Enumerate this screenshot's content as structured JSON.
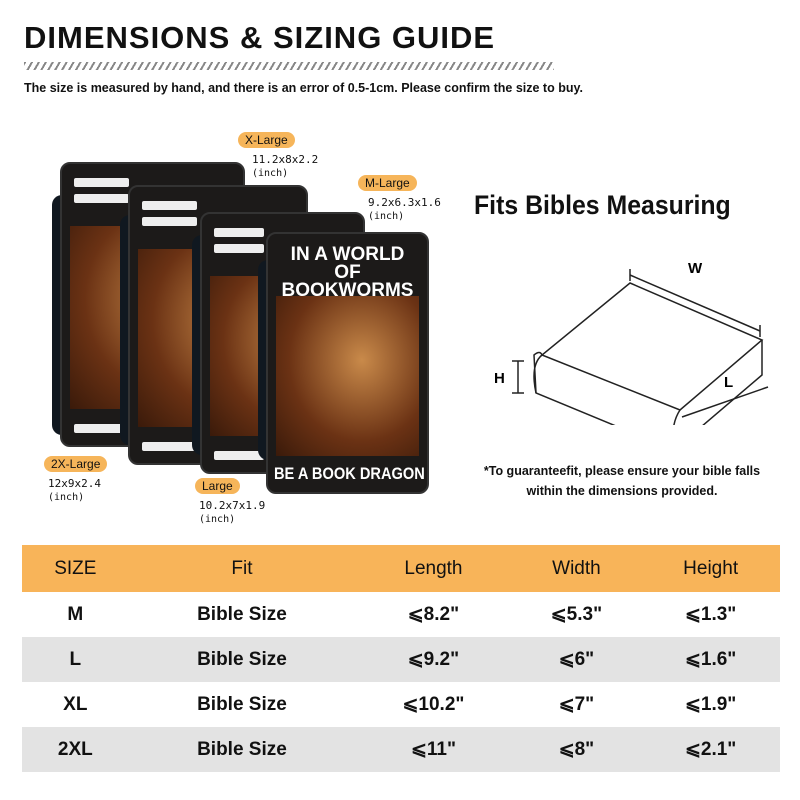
{
  "header": {
    "title": "DIMENSIONS & SIZING GUIDE",
    "subtitle": "The size is measured by hand, and there is an error of 0.5-1cm. Please confirm the size to buy."
  },
  "sizes": [
    {
      "label": "X-Large",
      "dims": "11.2x8x2.2",
      "unit": "(inch)"
    },
    {
      "label": "M-Large",
      "dims": "9.2x6.3x1.6",
      "unit": "(inch)"
    },
    {
      "label": "2X-Large",
      "dims": "12x9x2.4",
      "unit": "(inch)"
    },
    {
      "label": "Large",
      "dims": "10.2x7x1.9",
      "unit": "(inch)"
    }
  ],
  "cover": {
    "line1": "IN A WORLD",
    "line2": "OF BOOKWORMS",
    "line3": "BE A BOOK DRAGON"
  },
  "diagram": {
    "title": "Fits Bibles Measuring",
    "w": "W",
    "h": "H",
    "l": "L"
  },
  "note": {
    "line1": "*To guaranteefit, please ensure your bible falls",
    "line2": "within the dimensions provided."
  },
  "colors": {
    "accent": "#f8b459",
    "row_alt": "#e3e3e3"
  },
  "table": {
    "headers": [
      "SIZE",
      "Fit",
      "Length",
      "Width",
      "Height"
    ],
    "rows": [
      [
        "M",
        "Bible Size",
        "⩽8.2\"",
        "⩽5.3\"",
        "⩽1.3\""
      ],
      [
        "L",
        "Bible Size",
        "⩽9.2\"",
        "⩽6\"",
        "⩽1.6\""
      ],
      [
        "XL",
        "Bible Size",
        "⩽10.2\"",
        "⩽7\"",
        "⩽1.9\""
      ],
      [
        "2XL",
        "Bible Size",
        "⩽11\"",
        "⩽8\"",
        "⩽2.1\""
      ]
    ]
  }
}
